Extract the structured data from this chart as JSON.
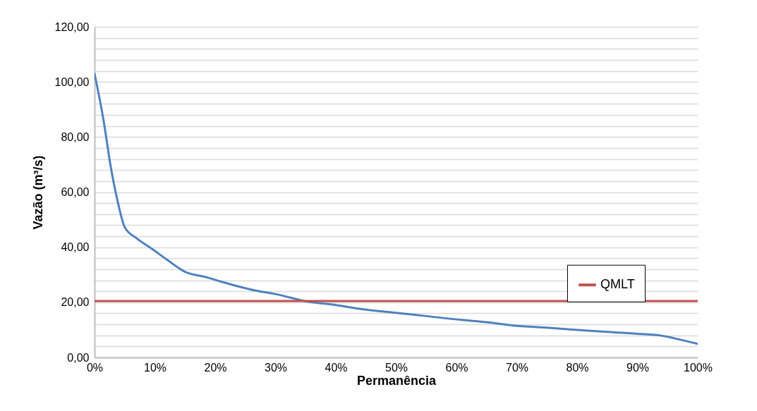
{
  "chart_data": {
    "type": "line",
    "xlabel": "Permanência",
    "ylabel": "Vazão (m³/s)",
    "xlim": [
      0,
      100
    ],
    "xticks": [
      {
        "value": 0,
        "label": "0%"
      },
      {
        "value": 10,
        "label": "10%"
      },
      {
        "value": 20,
        "label": "20%"
      },
      {
        "value": 30,
        "label": "30%"
      },
      {
        "value": 40,
        "label": "40%"
      },
      {
        "value": 50,
        "label": "50%"
      },
      {
        "value": 60,
        "label": "60%"
      },
      {
        "value": 70,
        "label": "70%"
      },
      {
        "value": 80,
        "label": "80%"
      },
      {
        "value": 90,
        "label": "90%"
      },
      {
        "value": 100,
        "label": "100%"
      }
    ],
    "ylim": [
      0,
      120
    ],
    "yticks": [
      {
        "value": 0,
        "label": "0,00"
      },
      {
        "value": 4,
        "label": null
      },
      {
        "value": 8,
        "label": null
      },
      {
        "value": 12,
        "label": null
      },
      {
        "value": 16,
        "label": null
      },
      {
        "value": 20,
        "label": "20,00"
      },
      {
        "value": 24,
        "label": null
      },
      {
        "value": 28,
        "label": null
      },
      {
        "value": 32,
        "label": null
      },
      {
        "value": 36,
        "label": null
      },
      {
        "value": 40,
        "label": "40,00"
      },
      {
        "value": 44,
        "label": null
      },
      {
        "value": 48,
        "label": null
      },
      {
        "value": 52,
        "label": null
      },
      {
        "value": 56,
        "label": null
      },
      {
        "value": 60,
        "label": "60,00"
      },
      {
        "value": 64,
        "label": null
      },
      {
        "value": 68,
        "label": null
      },
      {
        "value": 72,
        "label": null
      },
      {
        "value": 76,
        "label": null
      },
      {
        "value": 80,
        "label": "80,00"
      },
      {
        "value": 84,
        "label": null
      },
      {
        "value": 88,
        "label": null
      },
      {
        "value": 92,
        "label": null
      },
      {
        "value": 96,
        "label": null
      },
      {
        "value": 100,
        "label": "100,00"
      },
      {
        "value": 104,
        "label": null
      },
      {
        "value": 108,
        "label": null
      },
      {
        "value": 112,
        "label": null
      },
      {
        "value": 116,
        "label": null
      },
      {
        "value": 120,
        "label": "120,00"
      }
    ],
    "grid": "y",
    "legend": "right",
    "marker": "none",
    "line_style": "solid",
    "series": [
      {
        "color": "#4f81bd",
        "x": [
          0,
          1.5,
          2.7,
          3.9,
          5,
          7,
          9.4,
          12,
          14.9,
          18.7,
          21,
          26.6,
          30,
          35.5,
          40,
          44.1,
          50,
          55,
          60.9,
          65,
          69.4,
          75,
          83.1,
          90,
          94,
          96,
          100
        ],
        "values": [
          103,
          86,
          69,
          56,
          47.3,
          43.2,
          39.6,
          35.5,
          31.2,
          29,
          27.5,
          24.3,
          23,
          20.2,
          19,
          17.6,
          16.2,
          15,
          13.6,
          12.8,
          11.6,
          10.8,
          9.5,
          8.6,
          7.9,
          7,
          4.9
        ]
      },
      {
        "name": "QMLT",
        "color": "#c0504d",
        "x": [
          0,
          100
        ],
        "values": [
          20.5,
          20.5
        ]
      }
    ]
  }
}
